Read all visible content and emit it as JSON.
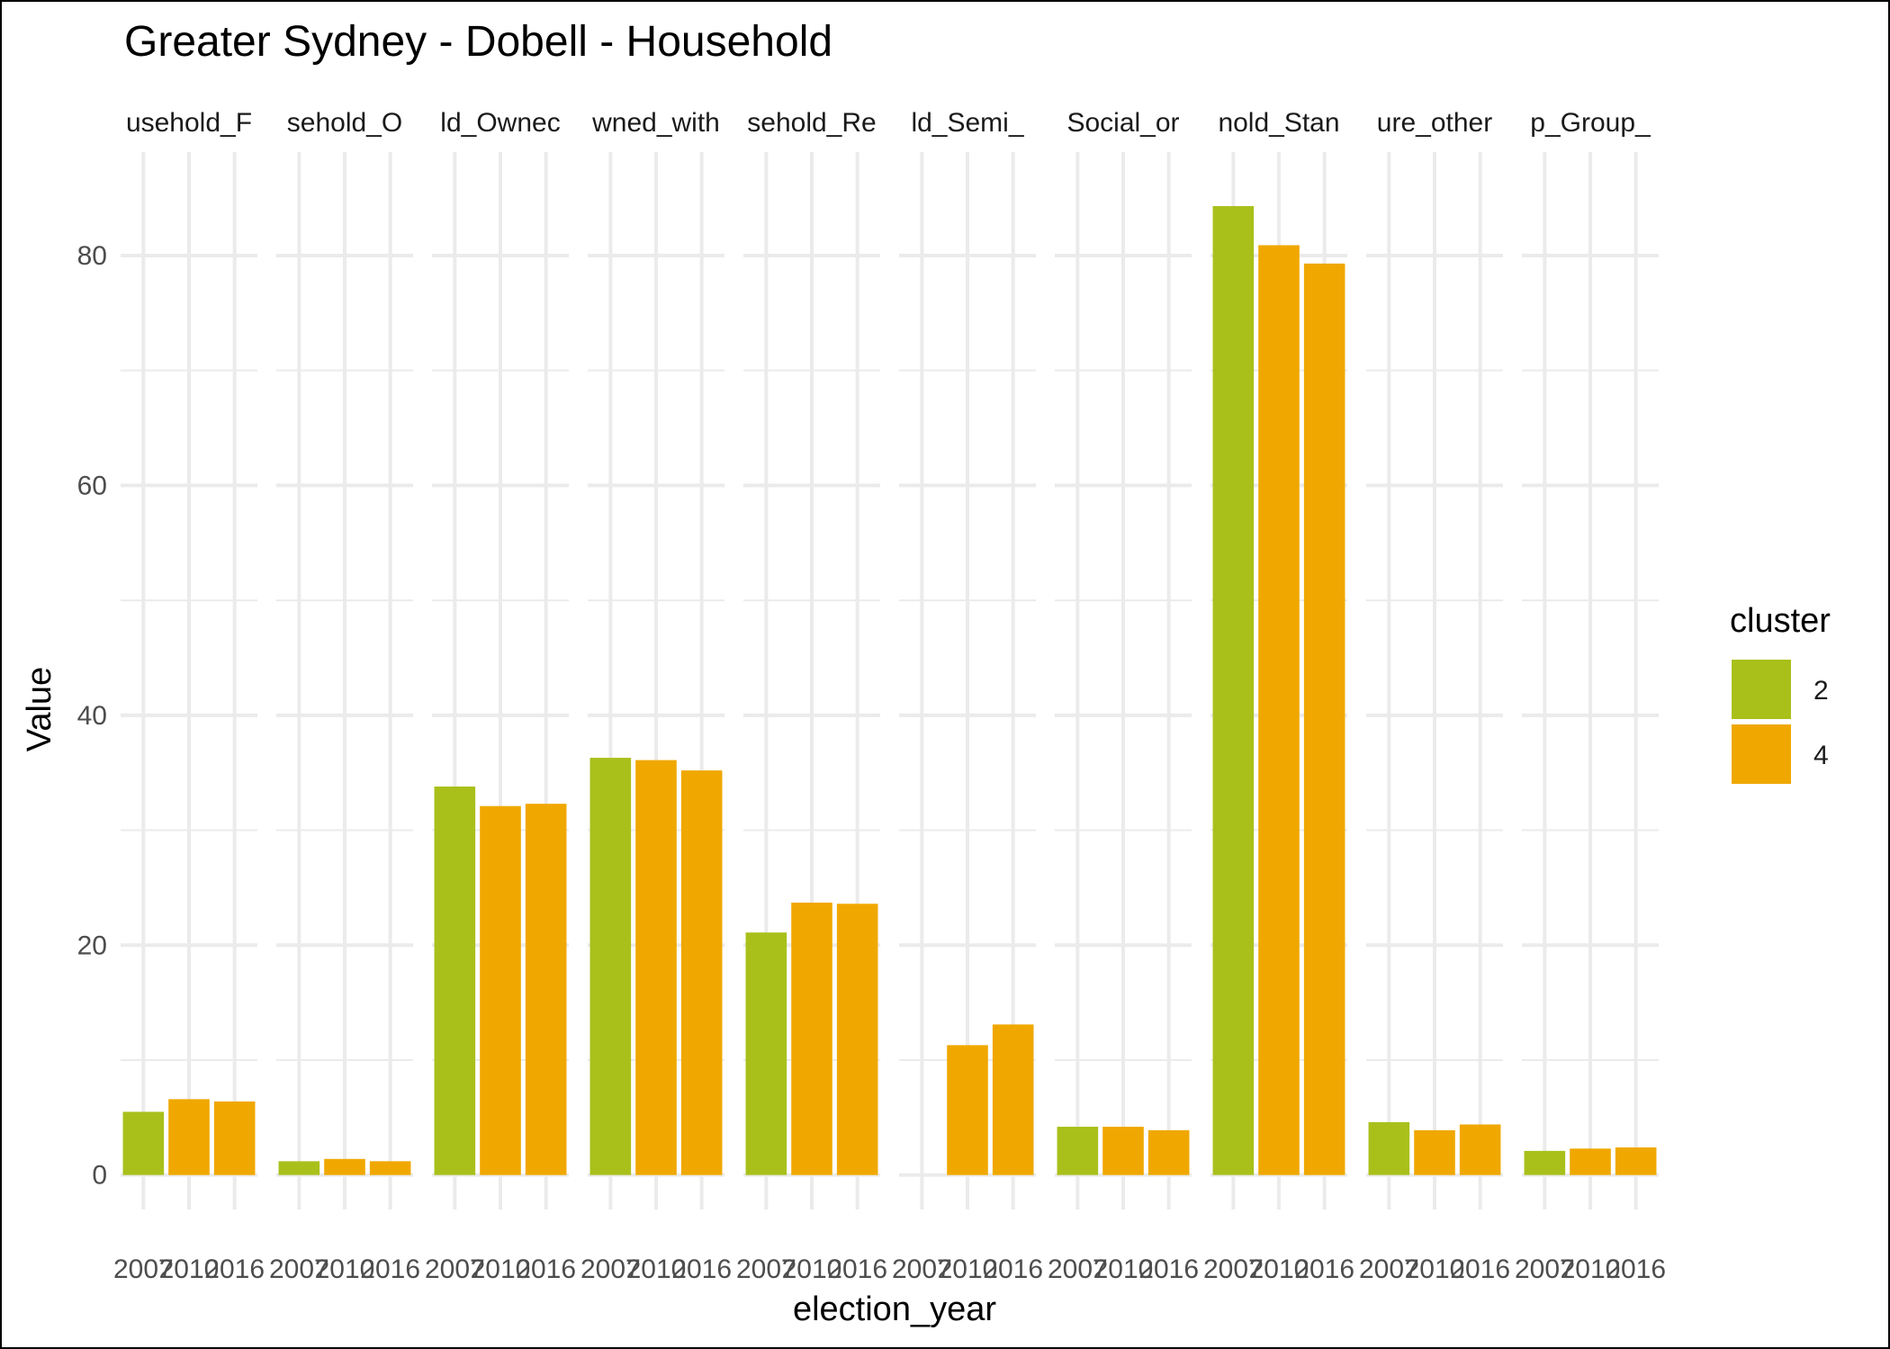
{
  "chart_data": {
    "type": "bar",
    "title": "Greater Sydney - Dobell - Household",
    "xlabel": "election_year",
    "ylabel": "Value",
    "ylim": [
      -3,
      89
    ],
    "y_ticks": [
      0,
      20,
      40,
      60,
      80
    ],
    "x_tick_labels": [
      "2007",
      "2010",
      "2016"
    ],
    "grid": true,
    "legend": {
      "title": "cluster",
      "position": "right",
      "entries": [
        {
          "label": "2",
          "color": "#A9C01B"
        },
        {
          "label": "4",
          "color": "#F0A800"
        }
      ]
    },
    "facets": [
      {
        "label": "usehold_F",
        "values": [
          {
            "year": "2007",
            "cluster": "2",
            "value": 5.5
          },
          {
            "year": "2010",
            "cluster": "4",
            "value": 6.6
          },
          {
            "year": "2016",
            "cluster": "4",
            "value": 6.4
          }
        ]
      },
      {
        "label": "sehold_O",
        "values": [
          {
            "year": "2007",
            "cluster": "2",
            "value": 1.2
          },
          {
            "year": "2010",
            "cluster": "4",
            "value": 1.4
          },
          {
            "year": "2016",
            "cluster": "4",
            "value": 1.2
          }
        ]
      },
      {
        "label": "ld_Ownec",
        "values": [
          {
            "year": "2007",
            "cluster": "2",
            "value": 33.8
          },
          {
            "year": "2010",
            "cluster": "4",
            "value": 32.1
          },
          {
            "year": "2016",
            "cluster": "4",
            "value": 32.3
          }
        ]
      },
      {
        "label": "wned_with",
        "values": [
          {
            "year": "2007",
            "cluster": "2",
            "value": 36.3
          },
          {
            "year": "2010",
            "cluster": "4",
            "value": 36.1
          },
          {
            "year": "2016",
            "cluster": "4",
            "value": 35.2
          }
        ]
      },
      {
        "label": "sehold_Re",
        "values": [
          {
            "year": "2007",
            "cluster": "2",
            "value": 21.1
          },
          {
            "year": "2010",
            "cluster": "4",
            "value": 23.7
          },
          {
            "year": "2016",
            "cluster": "4",
            "value": 23.6
          }
        ]
      },
      {
        "label": "ld_Semi_",
        "values": [
          {
            "year": "2010",
            "cluster": "4",
            "value": 11.3
          },
          {
            "year": "2016",
            "cluster": "4",
            "value": 13.1
          }
        ]
      },
      {
        "label": "Social_or",
        "values": [
          {
            "year": "2007",
            "cluster": "2",
            "value": 4.2
          },
          {
            "year": "2010",
            "cluster": "4",
            "value": 4.2
          },
          {
            "year": "2016",
            "cluster": "4",
            "value": 3.9
          }
        ]
      },
      {
        "label": "nold_Stan",
        "values": [
          {
            "year": "2007",
            "cluster": "2",
            "value": 84.3
          },
          {
            "year": "2010",
            "cluster": "4",
            "value": 80.9
          },
          {
            "year": "2016",
            "cluster": "4",
            "value": 79.3
          }
        ]
      },
      {
        "label": "ure_other",
        "values": [
          {
            "year": "2007",
            "cluster": "2",
            "value": 4.6
          },
          {
            "year": "2010",
            "cluster": "4",
            "value": 3.9
          },
          {
            "year": "2016",
            "cluster": "4",
            "value": 4.4
          }
        ]
      },
      {
        "label": "p_Group_",
        "values": [
          {
            "year": "2007",
            "cluster": "2",
            "value": 2.1
          },
          {
            "year": "2010",
            "cluster": "4",
            "value": 2.3
          },
          {
            "year": "2016",
            "cluster": "4",
            "value": 2.4
          }
        ]
      }
    ]
  }
}
